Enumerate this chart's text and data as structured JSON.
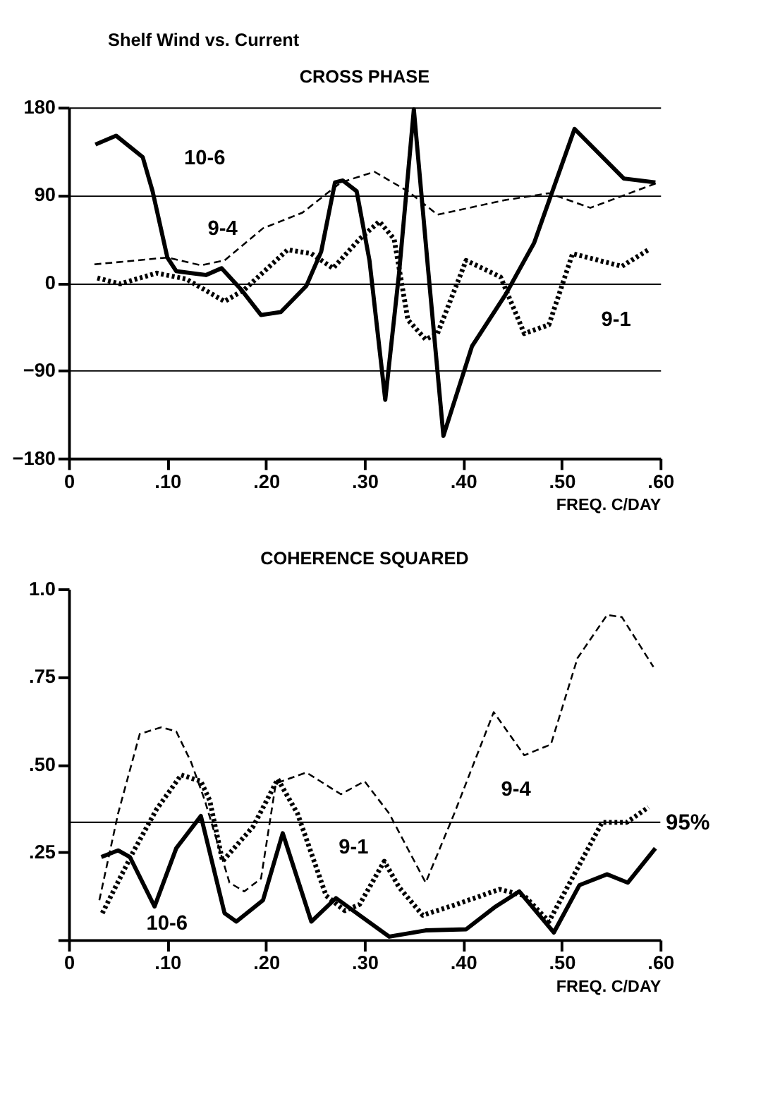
{
  "chart_data": [
    {
      "type": "line",
      "title": "Shelf Wind vs. Current",
      "subtitle": "CROSS PHASE",
      "xlabel": "FREQ. C/DAY",
      "xlim": [
        0,
        0.6
      ],
      "ylim": [
        -180,
        180
      ],
      "xticks": [
        {
          "value": 0,
          "label": "0"
        },
        {
          "value": 0.1,
          "label": ".10"
        },
        {
          "value": 0.2,
          "label": ".20"
        },
        {
          "value": 0.3,
          "label": ".30"
        },
        {
          "value": 0.4,
          "label": ".40"
        },
        {
          "value": 0.5,
          "label": ".50"
        },
        {
          "value": 0.6,
          "label": ".60"
        }
      ],
      "yticks": [
        -180,
        -90,
        0,
        90,
        180
      ],
      "grid": "y",
      "marker": "none",
      "series": [
        {
          "name": "10-6",
          "color": "#000000",
          "line_style": "solid",
          "x": [
            0.027,
            0.048,
            0.075,
            0.085,
            0.1,
            0.109,
            0.139,
            0.155,
            0.175,
            0.195,
            0.215,
            0.241,
            0.256,
            0.27,
            0.278,
            0.292,
            0.305,
            0.321,
            0.335,
            0.35,
            0.364,
            0.38,
            0.409,
            0.443,
            0.472,
            0.513,
            0.563,
            0.595
          ],
          "values": [
            142,
            151,
            129,
            94,
            26,
            12,
            8,
            15,
            -7,
            -33,
            -30,
            -3,
            32,
            103,
            105,
            94,
            23,
            -120,
            10,
            178,
            19,
            -157,
            -65,
            -12,
            41,
            158,
            107,
            103
          ]
        },
        {
          "name": "9-4",
          "color": "#000000",
          "line_style": "dashed",
          "x": [
            0.026,
            0.1,
            0.134,
            0.158,
            0.197,
            0.237,
            0.276,
            0.31,
            0.344,
            0.374,
            0.443,
            0.487,
            0.529,
            0.561,
            0.598
          ],
          "values": [
            19,
            26,
            18,
            23,
            56,
            72,
            103,
            114,
            94,
            70,
            85,
            92,
            77,
            89,
            103
          ]
        },
        {
          "name": "9-1",
          "color": "#000000",
          "line_style": "dotted",
          "x": [
            0.029,
            0.052,
            0.089,
            0.119,
            0.158,
            0.178,
            0.222,
            0.246,
            0.268,
            0.295,
            0.315,
            0.33,
            0.344,
            0.362,
            0.374,
            0.403,
            0.438,
            0.462,
            0.487,
            0.511,
            0.561,
            0.588
          ],
          "values": [
            5,
            -1,
            10,
            4,
            -19,
            -7,
            34,
            30,
            15,
            45,
            63,
            45,
            -38,
            -58,
            -52,
            23,
            6,
            -52,
            -43,
            30,
            17,
            34
          ]
        }
      ]
    },
    {
      "type": "line",
      "title": "COHERENCE SQUARED",
      "xlabel": "FREQ. C/DAY",
      "xlim": [
        0,
        0.6
      ],
      "ylim": [
        0,
        1
      ],
      "xticks": [
        {
          "value": 0,
          "label": "0"
        },
        {
          "value": 0.1,
          "label": ".10"
        },
        {
          "value": 0.2,
          "label": ".20"
        },
        {
          "value": 0.3,
          "label": ".30"
        },
        {
          "value": 0.4,
          "label": ".40"
        },
        {
          "value": 0.5,
          "label": ".50"
        },
        {
          "value": 0.6,
          "label": ".60"
        }
      ],
      "yticks": [
        {
          "value": 0,
          "label": null
        },
        {
          "value": 0.25,
          "label": ".25"
        },
        {
          "value": 0.5,
          "label": ".50"
        },
        {
          "value": 0.75,
          "label": ".75"
        },
        {
          "value": 1.0,
          "label": "1.0"
        }
      ],
      "grid": false,
      "marker": "none",
      "ref_lines": [
        {
          "axis": "y",
          "value": 0.335
        }
      ],
      "annotations": [
        {
          "text": "95%",
          "x": 0.6,
          "y": 0.335
        }
      ],
      "series": [
        {
          "name": "10-6",
          "color": "#000000",
          "line_style": "solid",
          "x": [
            0.033,
            0.05,
            0.062,
            0.087,
            0.109,
            0.134,
            0.158,
            0.17,
            0.197,
            0.217,
            0.246,
            0.271,
            0.295,
            0.325,
            0.362,
            0.403,
            0.433,
            0.457,
            0.492,
            0.518,
            0.546,
            0.567,
            0.595
          ],
          "values": [
            0.236,
            0.255,
            0.236,
            0.095,
            0.261,
            0.353,
            0.076,
            0.052,
            0.113,
            0.304,
            0.052,
            0.119,
            0.07,
            0.009,
            0.027,
            0.03,
            0.095,
            0.138,
            0.021,
            0.156,
            0.187,
            0.163,
            0.261
          ]
        },
        {
          "name": "9-4",
          "color": "#000000",
          "line_style": "dashed",
          "x": [
            0.031,
            0.05,
            0.072,
            0.094,
            0.109,
            0.124,
            0.138,
            0.163,
            0.178,
            0.195,
            0.21,
            0.241,
            0.276,
            0.3,
            0.325,
            0.362,
            0.391,
            0.431,
            0.462,
            0.489,
            0.516,
            0.546,
            0.561,
            0.593
          ],
          "values": [
            0.113,
            0.36,
            0.587,
            0.606,
            0.594,
            0.507,
            0.397,
            0.163,
            0.138,
            0.175,
            0.446,
            0.477,
            0.415,
            0.452,
            0.36,
            0.163,
            0.36,
            0.649,
            0.526,
            0.557,
            0.803,
            0.926,
            0.92,
            0.778
          ]
        },
        {
          "name": "9-1",
          "color": "#000000",
          "line_style": "dotted",
          "x": [
            0.034,
            0.065,
            0.089,
            0.114,
            0.134,
            0.143,
            0.156,
            0.187,
            0.212,
            0.232,
            0.261,
            0.28,
            0.295,
            0.32,
            0.335,
            0.359,
            0.393,
            0.437,
            0.462,
            0.487,
            0.541,
            0.566,
            0.588
          ],
          "values": [
            0.076,
            0.249,
            0.372,
            0.47,
            0.452,
            0.397,
            0.224,
            0.323,
            0.458,
            0.36,
            0.126,
            0.083,
            0.101,
            0.224,
            0.15,
            0.07,
            0.101,
            0.144,
            0.126,
            0.052,
            0.335,
            0.335,
            0.378
          ]
        }
      ]
    }
  ]
}
